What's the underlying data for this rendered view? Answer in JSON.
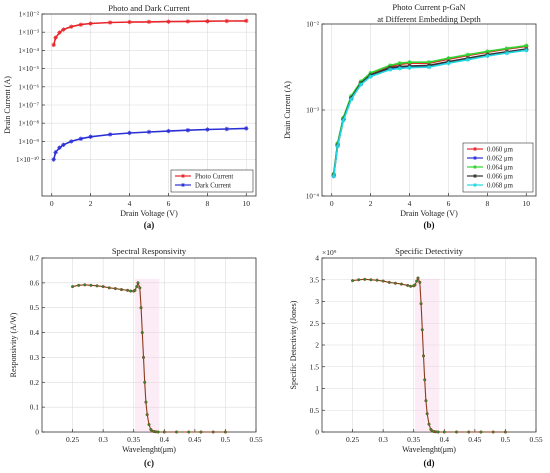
{
  "chart_data": [
    {
      "id": "a",
      "type": "line",
      "panel_label": "(a)",
      "title": "Photo and Dark Current",
      "xlabel": "Drain Voltage (V)",
      "ylabel": "Drain Current (A)",
      "xlim": [
        -0.5,
        10.5
      ],
      "ylim_log10": [
        -12,
        -2
      ],
      "yscale": "log",
      "xticks": [
        "0",
        "2",
        "4",
        "6",
        "8",
        "10"
      ],
      "yticks": [
        "1×10⁻²",
        "1×10⁻³",
        "1×10⁻⁴",
        "1×10⁻⁵",
        "1×10⁻⁶",
        "1×10⁻⁷",
        "1×10⁻⁸",
        "1×10⁻⁹",
        "1×10⁻¹⁰"
      ],
      "grid": true,
      "legend_position": "lower-right",
      "series": [
        {
          "name": "Photo Current",
          "color": "#e8272b",
          "marker": "star",
          "x": [
            0.1,
            0.2,
            0.4,
            0.6,
            1.0,
            1.5,
            2.0,
            3.0,
            4.0,
            5.0,
            6.0,
            7.0,
            8.0,
            9.0,
            10.0
          ],
          "y": [
            0.0002,
            0.0005,
            0.00095,
            0.0014,
            0.002,
            0.0026,
            0.003,
            0.0034,
            0.0036,
            0.0037,
            0.0038,
            0.0039,
            0.004,
            0.0041,
            0.0042
          ]
        },
        {
          "name": "Dark Current",
          "color": "#2b2fd6",
          "marker": "star",
          "x": [
            0.1,
            0.2,
            0.4,
            0.6,
            1.0,
            1.5,
            2.0,
            3.0,
            4.0,
            5.0,
            6.0,
            7.0,
            8.0,
            9.0,
            10.0
          ],
          "y": [
            1e-10,
            2.5e-10,
            4.5e-10,
            6.5e-10,
            1e-09,
            1.4e-09,
            1.8e-09,
            2.4e-09,
            2.9e-09,
            3.3e-09,
            3.7e-09,
            4.1e-09,
            4.5e-09,
            4.8e-09,
            5.2e-09
          ]
        }
      ]
    },
    {
      "id": "b",
      "type": "line",
      "panel_label": "(b)",
      "title": [
        "Photo Current p-GaN",
        "at Different Embedding Depth"
      ],
      "xlabel": "Drain Voltage (V)",
      "ylabel": "Drain Current (A)",
      "xlim": [
        -0.5,
        10.5
      ],
      "ylim_log10": [
        -4,
        -2
      ],
      "yscale": "log",
      "xticks": [
        "0",
        "2",
        "4",
        "6",
        "8",
        "10"
      ],
      "yticks": [
        "10⁻²",
        "10⁻³",
        "10⁻⁴"
      ],
      "grid": true,
      "legend_position": "lower-right",
      "series": [
        {
          "name": "0.060 μm",
          "color": "#e8272b",
          "x": [
            0.1,
            0.3,
            0.6,
            1.0,
            1.5,
            2.0,
            3.0,
            3.5,
            4.0,
            5.0,
            6.0,
            7.0,
            8.0,
            9.0,
            10.0
          ],
          "y": [
            0.00018,
            0.0004,
            0.0008,
            0.0014,
            0.0021,
            0.0026,
            0.0032,
            0.0034,
            0.0035,
            0.0035,
            0.0039,
            0.0043,
            0.0047,
            0.0051,
            0.0055
          ]
        },
        {
          "name": "0.062 μm",
          "color": "#2b2fd6",
          "x": [
            0.1,
            0.3,
            0.6,
            1.0,
            1.5,
            2.0,
            3.0,
            3.5,
            4.0,
            5.0,
            6.0,
            7.0,
            8.0,
            9.0,
            10.0
          ],
          "y": [
            0.00017,
            0.00038,
            0.00077,
            0.00135,
            0.002,
            0.0025,
            0.003,
            0.0031,
            0.00315,
            0.0032,
            0.00355,
            0.0039,
            0.0043,
            0.00465,
            0.005
          ]
        },
        {
          "name": "0.064 μm",
          "color": "#2fd42f",
          "x": [
            0.1,
            0.3,
            0.6,
            1.0,
            1.5,
            2.0,
            3.0,
            3.5,
            4.0,
            5.0,
            6.0,
            7.0,
            8.0,
            9.0,
            10.0
          ],
          "y": [
            0.00018,
            0.00041,
            0.00082,
            0.00145,
            0.00215,
            0.0027,
            0.0033,
            0.0035,
            0.0036,
            0.0036,
            0.004,
            0.0044,
            0.0048,
            0.0052,
            0.0056
          ]
        },
        {
          "name": "0.066 μm",
          "color": "#333333",
          "x": [
            0.1,
            0.3,
            0.6,
            1.0,
            1.5,
            2.0,
            3.0,
            3.5,
            4.0,
            5.0,
            6.0,
            7.0,
            8.0,
            9.0,
            10.0
          ],
          "y": [
            0.000175,
            0.00039,
            0.00078,
            0.00138,
            0.00205,
            0.00255,
            0.0031,
            0.0032,
            0.00325,
            0.0033,
            0.00365,
            0.004,
            0.0044,
            0.00475,
            0.0051
          ]
        },
        {
          "name": "0.068 μm",
          "color": "#22d8e0",
          "x": [
            0.1,
            0.3,
            0.6,
            1.0,
            1.5,
            2.0,
            3.0,
            3.5,
            4.0,
            5.0,
            6.0,
            7.0,
            8.0,
            9.0,
            10.0
          ],
          "y": [
            0.00017,
            0.00038,
            0.00076,
            0.00133,
            0.00198,
            0.00245,
            0.00295,
            0.00305,
            0.0031,
            0.00315,
            0.0035,
            0.00385,
            0.00425,
            0.0046,
            0.00495
          ]
        }
      ]
    },
    {
      "id": "c",
      "type": "line",
      "panel_label": "(c)",
      "title": "Spectral Responsivity",
      "xlabel": "Wavelenght(μm)",
      "ylabel": "Responsivity (A/W)",
      "xlim": [
        0.2,
        0.55
      ],
      "ylim": [
        0,
        0.7
      ],
      "xticks": [
        "0.25",
        "0.3",
        "0.35",
        "0.4",
        "0.45",
        "0.5",
        "0.55"
      ],
      "xtick_values": [
        0.25,
        0.3,
        0.35,
        0.4,
        0.45,
        0.5,
        0.55
      ],
      "yticks": [
        "0",
        "0.1",
        "0.2",
        "0.3",
        "0.4",
        "0.5",
        "0.6",
        "0.7"
      ],
      "ytick_values": [
        0,
        0.1,
        0.2,
        0.3,
        0.4,
        0.5,
        0.6,
        0.7
      ],
      "grid": true,
      "series": [
        {
          "color": "#8a3a1c",
          "x": [
            0.25,
            0.26,
            0.27,
            0.28,
            0.29,
            0.3,
            0.31,
            0.32,
            0.33,
            0.34,
            0.345,
            0.35,
            0.352,
            0.355,
            0.357,
            0.36,
            0.362,
            0.364,
            0.366,
            0.368,
            0.37,
            0.372,
            0.375,
            0.378,
            0.38,
            0.383,
            0.386,
            0.39,
            0.4,
            0.42,
            0.44,
            0.46,
            0.48,
            0.5
          ],
          "y": [
            0.585,
            0.59,
            0.592,
            0.59,
            0.588,
            0.585,
            0.58,
            0.577,
            0.573,
            0.57,
            0.567,
            0.567,
            0.57,
            0.585,
            0.6,
            0.58,
            0.5,
            0.4,
            0.3,
            0.2,
            0.12,
            0.07,
            0.03,
            0.01,
            0.004,
            0.002,
            0.001,
            0.0,
            0.0,
            0.0,
            0.0,
            0.0,
            0.0,
            0.0
          ]
        }
      ]
    },
    {
      "id": "d",
      "type": "line",
      "panel_label": "(d)",
      "title": "Specific Detectivity",
      "xlabel": "Wavelenght(μm)",
      "ylabel": "Specific Detectivity (Jones)",
      "axis_multiplier": "×10⁹",
      "xlim": [
        0.2,
        0.55
      ],
      "ylim": [
        0,
        4
      ],
      "xticks": [
        "0.25",
        "0.3",
        "0.35",
        "0.4",
        "0.45",
        "0.5",
        "0.55"
      ],
      "xtick_values": [
        0.25,
        0.3,
        0.35,
        0.4,
        0.45,
        0.5,
        0.55
      ],
      "yticks": [
        "0",
        "0.5",
        "1",
        "1.5",
        "2",
        "2.5",
        "3",
        "3.5",
        "4"
      ],
      "ytick_values": [
        0,
        0.5,
        1,
        1.5,
        2,
        2.5,
        3,
        3.5,
        4
      ],
      "grid": true,
      "series": [
        {
          "color": "#8a3a1c",
          "x": [
            0.25,
            0.26,
            0.27,
            0.28,
            0.29,
            0.3,
            0.31,
            0.32,
            0.33,
            0.34,
            0.345,
            0.35,
            0.352,
            0.355,
            0.357,
            0.36,
            0.362,
            0.364,
            0.366,
            0.368,
            0.37,
            0.372,
            0.375,
            0.378,
            0.38,
            0.383,
            0.386,
            0.39,
            0.4,
            0.42,
            0.44,
            0.46,
            0.48,
            0.5
          ],
          "y": [
            3.48,
            3.5,
            3.51,
            3.5,
            3.49,
            3.47,
            3.44,
            3.42,
            3.4,
            3.37,
            3.35,
            3.36,
            3.38,
            3.47,
            3.54,
            3.44,
            2.95,
            2.35,
            1.75,
            1.2,
            0.72,
            0.42,
            0.18,
            0.06,
            0.025,
            0.01,
            0.005,
            0.0,
            0.0,
            0.0,
            0.0,
            0.0,
            0.0,
            0.0
          ]
        }
      ]
    }
  ]
}
